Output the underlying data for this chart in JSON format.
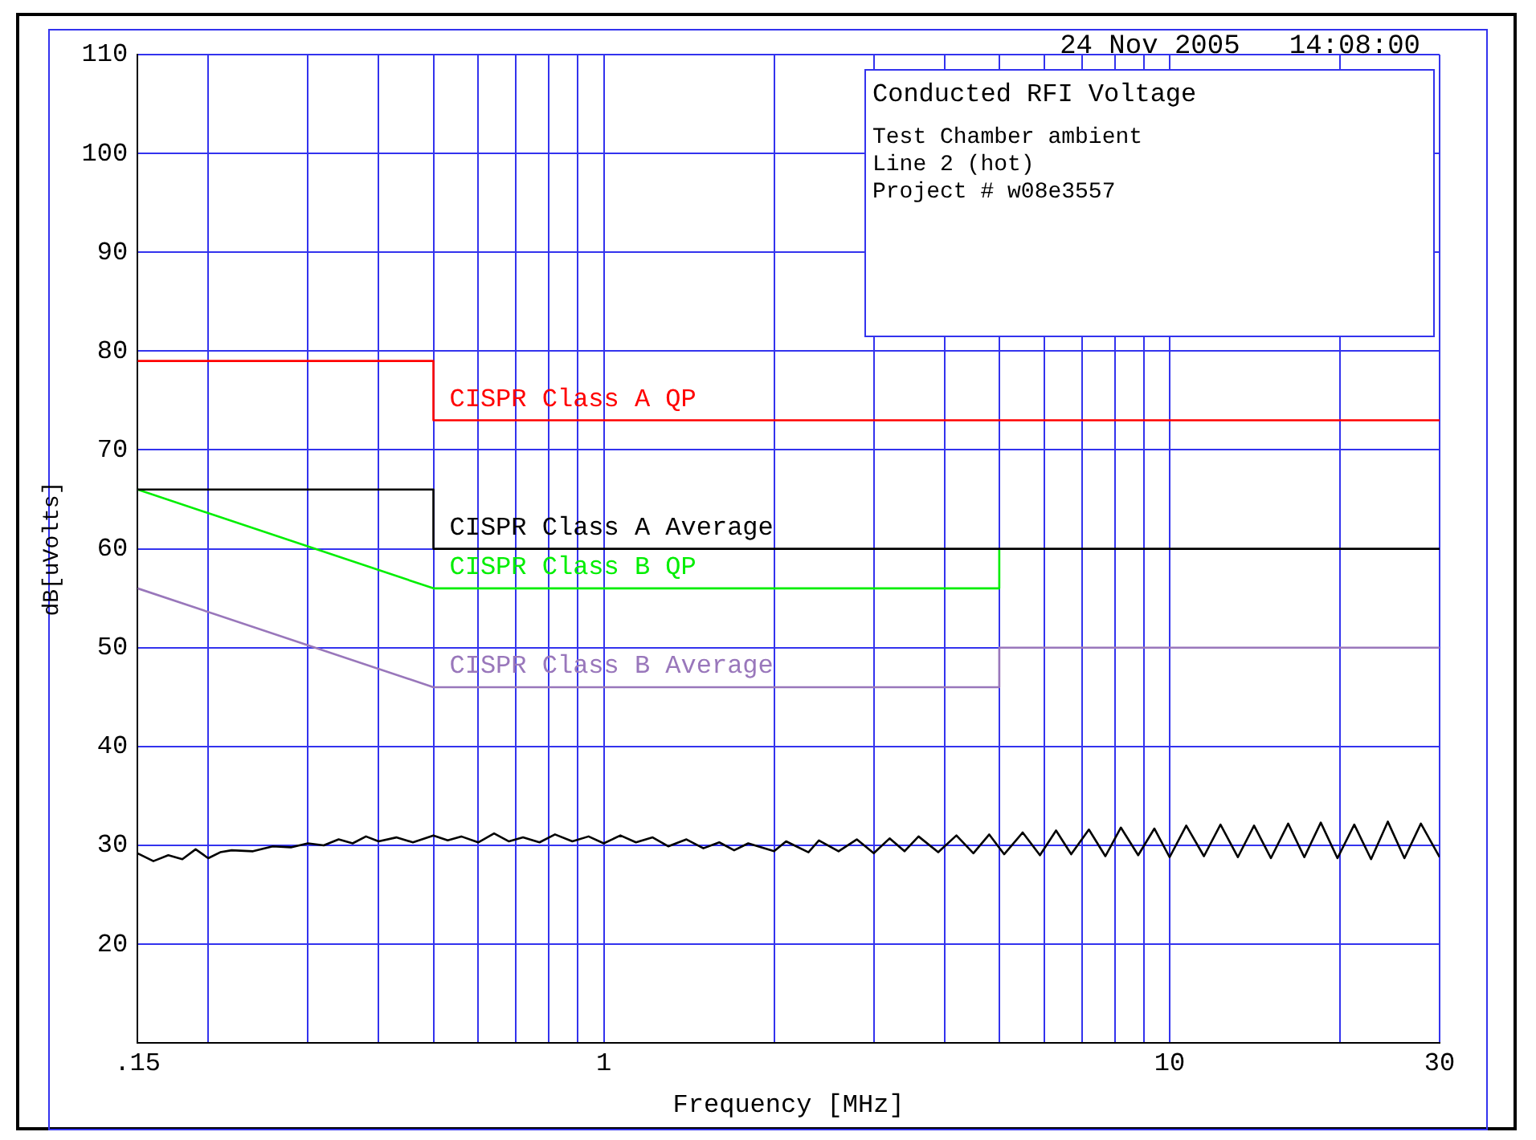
{
  "chart_data": {
    "type": "line",
    "title": "Conducted RFI Voltage",
    "xlabel": "Frequency [MHz]",
    "ylabel": "dB[uVolts]",
    "annotations": [
      "24 Nov 2005   14:08:00",
      "Test Chamber ambient",
      "Line 2 (hot)",
      "Project # w08e3557"
    ],
    "log": "x",
    "grid": true,
    "legend": false,
    "marker": "none",
    "line_style": "solid",
    "xlim": [
      0.15,
      30
    ],
    "ylim": [
      10,
      110
    ],
    "xticks": [
      {
        "value": 0.15,
        "label": ".15"
      },
      {
        "value": 0.2,
        "label": null
      },
      {
        "value": 0.3,
        "label": null
      },
      {
        "value": 0.4,
        "label": null
      },
      {
        "value": 0.5,
        "label": null
      },
      {
        "value": 0.6,
        "label": null
      },
      {
        "value": 0.7,
        "label": null
      },
      {
        "value": 0.8,
        "label": null
      },
      {
        "value": 0.9,
        "label": null
      },
      1,
      {
        "value": 2,
        "label": null
      },
      {
        "value": 3,
        "label": null
      },
      {
        "value": 4,
        "label": null
      },
      {
        "value": 5,
        "label": null
      },
      {
        "value": 6,
        "label": null
      },
      {
        "value": 7,
        "label": null
      },
      {
        "value": 8,
        "label": null
      },
      {
        "value": 9,
        "label": null
      },
      10,
      {
        "value": 20,
        "label": null
      },
      30
    ],
    "yticks": [
      20,
      30,
      40,
      50,
      60,
      70,
      80,
      90,
      100,
      110
    ],
    "series": [
      {
        "name": "CISPR Class A QP",
        "color": "#ff0000",
        "x": [
          0.15,
          0.5,
          0.5,
          30
        ],
        "values": [
          79,
          79,
          73,
          73
        ]
      },
      {
        "name": "CISPR Class A Average",
        "color": "#000000",
        "x": [
          0.15,
          0.5,
          0.5,
          30
        ],
        "values": [
          66,
          66,
          60,
          60
        ]
      },
      {
        "name": "CISPR Class B QP",
        "color": "#00ee00",
        "x": [
          0.15,
          0.5,
          5,
          5
        ],
        "values": [
          66,
          56,
          56,
          60
        ]
      },
      {
        "name": "CISPR Class B Average",
        "color": "#9977bb",
        "x": [
          0.15,
          0.5,
          5,
          5,
          30
        ],
        "values": [
          56,
          46,
          46,
          50,
          50
        ]
      },
      {
        "color": "#000000",
        "x": [
          0.15,
          0.16,
          0.17,
          0.18,
          0.19,
          0.2,
          0.21,
          0.22,
          0.24,
          0.26,
          0.28,
          0.3,
          0.32,
          0.34,
          0.36,
          0.38,
          0.4,
          0.43,
          0.46,
          0.5,
          0.53,
          0.56,
          0.6,
          0.64,
          0.68,
          0.72,
          0.77,
          0.82,
          0.88,
          0.94,
          1,
          1.07,
          1.14,
          1.22,
          1.3,
          1.4,
          1.5,
          1.6,
          1.7,
          1.8,
          2,
          2.1,
          2.3,
          2.4,
          2.6,
          2.8,
          3,
          3.2,
          3.4,
          3.6,
          3.9,
          4.2,
          4.5,
          4.8,
          5.1,
          5.5,
          5.9,
          6.3,
          6.7,
          7.2,
          7.7,
          8.2,
          8.8,
          9.4,
          10,
          10.7,
          11.5,
          12.3,
          13.2,
          14.1,
          15.1,
          16.2,
          17.3,
          18.5,
          19.8,
          21.2,
          22.7,
          24.3,
          26,
          27.8,
          30
        ],
        "values": [
          29.2,
          28.4,
          29.0,
          28.6,
          29.6,
          28.7,
          29.3,
          29.5,
          29.4,
          29.9,
          29.8,
          30.2,
          30.0,
          30.6,
          30.2,
          30.9,
          30.4,
          30.8,
          30.3,
          31.0,
          30.5,
          30.9,
          30.3,
          31.2,
          30.4,
          30.8,
          30.3,
          31.1,
          30.4,
          30.9,
          30.2,
          31.0,
          30.3,
          30.8,
          29.9,
          30.6,
          29.7,
          30.3,
          29.5,
          30.2,
          29.4,
          30.4,
          29.3,
          30.5,
          29.4,
          30.6,
          29.2,
          30.7,
          29.4,
          30.9,
          29.3,
          31.0,
          29.2,
          31.1,
          29.1,
          31.3,
          29.0,
          31.5,
          29.1,
          31.6,
          28.9,
          31.8,
          29.0,
          31.7,
          28.8,
          32.0,
          28.9,
          32.1,
          28.8,
          32.0,
          28.7,
          32.2,
          28.8,
          32.3,
          28.7,
          32.1,
          28.6,
          32.4,
          28.7,
          32.2,
          28.8
        ]
      }
    ]
  }
}
